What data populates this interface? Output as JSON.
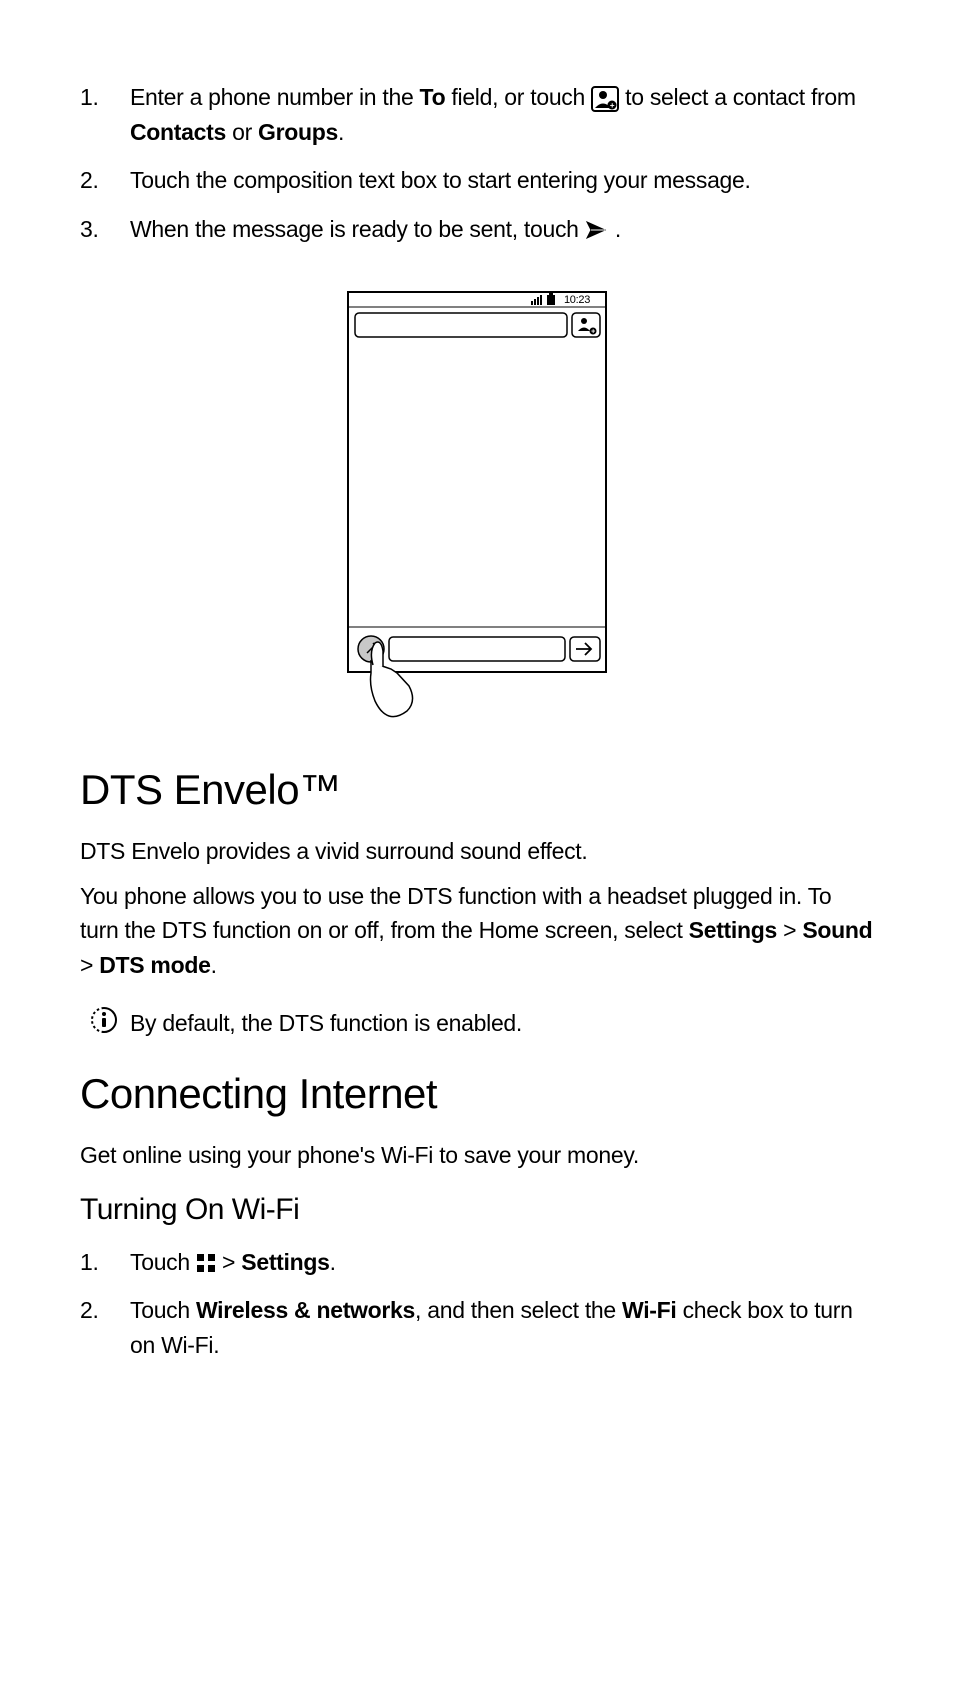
{
  "steps_a": [
    {
      "num": "1.",
      "parts": [
        {
          "t": "Enter a phone number in the "
        },
        {
          "t": "To",
          "b": true
        },
        {
          "t": " field, or touch "
        },
        {
          "icon": "contact"
        },
        {
          "t": " to select a contact from "
        },
        {
          "t": "Contacts",
          "b": true
        },
        {
          "t": " or "
        },
        {
          "t": "Groups",
          "b": true
        },
        {
          "t": "."
        }
      ]
    },
    {
      "num": "2.",
      "parts": [
        {
          "t": "Touch the composition text box to start entering your message."
        }
      ]
    },
    {
      "num": "3.",
      "parts": [
        {
          "t": "When the message is ready to be sent, touch "
        },
        {
          "icon": "send"
        },
        {
          "t": " ."
        }
      ]
    }
  ],
  "phone": {
    "time": "10:23"
  },
  "dts": {
    "heading": "DTS Envelo™",
    "p1": "DTS Envelo provides a vivid surround sound effect.",
    "p2_parts": [
      {
        "t": "You phone allows you to use the DTS function with a headset plugged in. To turn the DTS function on or off, from the Home screen, select "
      },
      {
        "t": "Settings",
        "b": true
      },
      {
        "t": " > "
      },
      {
        "t": "Sound",
        "b": true
      },
      {
        "t": " > "
      },
      {
        "t": "DTS mode",
        "b": true
      },
      {
        "t": "."
      }
    ],
    "note": "By default, the DTS function is enabled."
  },
  "internet": {
    "heading": "Connecting Internet",
    "p": "Get online using your phone's Wi-Fi to save your money.",
    "sub": "Turning On Wi-Fi",
    "steps": [
      {
        "num": "1.",
        "parts": [
          {
            "t": "Touch "
          },
          {
            "icon": "apps"
          },
          {
            "t": "  > "
          },
          {
            "t": "Settings",
            "b": true
          },
          {
            "t": "."
          }
        ]
      },
      {
        "num": "2.",
        "parts": [
          {
            "t": "Touch "
          },
          {
            "t": "Wireless & networks",
            "b": true
          },
          {
            "t": ", and then select the "
          },
          {
            "t": "Wi-Fi",
            "b": true
          },
          {
            "t": " check box to turn on Wi-Fi."
          }
        ]
      }
    ]
  },
  "colors": {
    "text": "#000000",
    "bg": "#ffffff",
    "icon_stroke": "#000000"
  }
}
